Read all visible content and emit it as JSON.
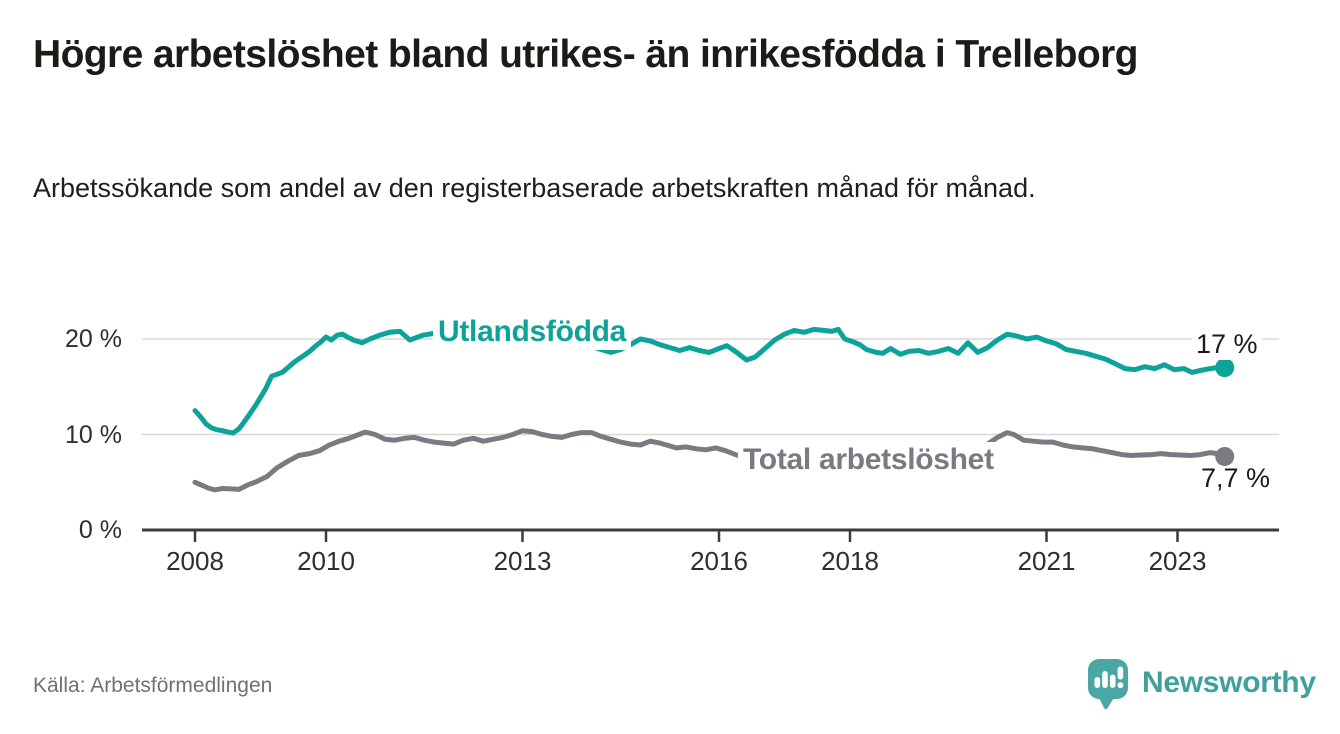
{
  "chart_data": {
    "type": "line",
    "title": "Högre arbetslöshet bland utrikes- än inrikesfödda i Trelleborg",
    "subtitle": "Arbetssökande som andel av den registerbaserade arbetskraften månad för månad.",
    "grid": "horizontal",
    "legend_position": "inline-labels",
    "x_range": [
      2007.95,
      2023.8
    ],
    "ylim": [
      0,
      22
    ],
    "x_ticks": [
      {
        "value": 2008,
        "label": "2008"
      },
      {
        "value": 2010,
        "label": "2010"
      },
      {
        "value": 2013,
        "label": "2013"
      },
      {
        "value": 2016,
        "label": "2016"
      },
      {
        "value": 2018,
        "label": "2018"
      },
      {
        "value": 2021,
        "label": "2021"
      },
      {
        "value": 2023,
        "label": "2023"
      }
    ],
    "y_ticks": [
      {
        "value": 0,
        "label": "0 %"
      },
      {
        "value": 10,
        "label": "10 %"
      },
      {
        "value": 20,
        "label": "20 %"
      }
    ],
    "series": [
      {
        "name": "Utlandsfödda",
        "color": "#0da39b",
        "end_label": "17 %",
        "end_value": 17.0,
        "points": [
          [
            2008.0,
            12.5
          ],
          [
            2008.08,
            11.9
          ],
          [
            2008.17,
            11.1
          ],
          [
            2008.25,
            10.7
          ],
          [
            2008.33,
            10.5
          ],
          [
            2008.42,
            10.4
          ],
          [
            2008.5,
            10.25
          ],
          [
            2008.58,
            10.15
          ],
          [
            2008.67,
            10.6
          ],
          [
            2008.75,
            11.3
          ],
          [
            2008.83,
            12.1
          ],
          [
            2008.92,
            13.0
          ],
          [
            2009.0,
            13.9
          ],
          [
            2009.08,
            14.8
          ],
          [
            2009.17,
            16.1
          ],
          [
            2009.25,
            16.3
          ],
          [
            2009.33,
            16.5
          ],
          [
            2009.42,
            17.0
          ],
          [
            2009.5,
            17.5
          ],
          [
            2009.58,
            17.9
          ],
          [
            2009.67,
            18.3
          ],
          [
            2009.75,
            18.7
          ],
          [
            2009.83,
            19.2
          ],
          [
            2009.92,
            19.7
          ],
          [
            2010.0,
            20.2
          ],
          [
            2010.08,
            19.9
          ],
          [
            2010.17,
            20.4
          ],
          [
            2010.25,
            20.5
          ],
          [
            2010.33,
            20.2
          ],
          [
            2010.42,
            19.9
          ],
          [
            2010.55,
            19.6
          ],
          [
            2010.67,
            20.0
          ],
          [
            2010.82,
            20.4
          ],
          [
            2010.97,
            20.7
          ],
          [
            2011.13,
            20.8
          ],
          [
            2011.28,
            19.9
          ],
          [
            2011.48,
            20.4
          ],
          [
            2011.65,
            20.6
          ],
          [
            2011.8,
            20.4
          ],
          [
            2011.95,
            20.1
          ],
          [
            2012.15,
            20.3
          ],
          [
            2012.35,
            19.7
          ],
          [
            2012.5,
            19.9
          ],
          [
            2012.65,
            20.1
          ],
          [
            2012.8,
            20.0
          ],
          [
            2012.95,
            19.8
          ],
          [
            2013.1,
            19.5
          ],
          [
            2013.25,
            19.4
          ],
          [
            2013.45,
            19.8
          ],
          [
            2013.6,
            19.9
          ],
          [
            2013.8,
            19.6
          ],
          [
            2014.0,
            19.3
          ],
          [
            2014.15,
            19.0
          ],
          [
            2014.35,
            18.6
          ],
          [
            2014.5,
            18.9
          ],
          [
            2014.65,
            19.4
          ],
          [
            2014.8,
            20.0
          ],
          [
            2014.95,
            19.8
          ],
          [
            2015.1,
            19.4
          ],
          [
            2015.25,
            19.1
          ],
          [
            2015.4,
            18.8
          ],
          [
            2015.55,
            19.1
          ],
          [
            2015.7,
            18.8
          ],
          [
            2015.85,
            18.6
          ],
          [
            2016.0,
            19.0
          ],
          [
            2016.12,
            19.3
          ],
          [
            2016.25,
            18.7
          ],
          [
            2016.42,
            17.8
          ],
          [
            2016.55,
            18.1
          ],
          [
            2016.7,
            19.0
          ],
          [
            2016.85,
            19.9
          ],
          [
            2017.0,
            20.5
          ],
          [
            2017.15,
            20.9
          ],
          [
            2017.3,
            20.7
          ],
          [
            2017.45,
            21.0
          ],
          [
            2017.6,
            20.9
          ],
          [
            2017.72,
            20.8
          ],
          [
            2017.82,
            21.0
          ],
          [
            2017.92,
            20.0
          ],
          [
            2018.05,
            19.7
          ],
          [
            2018.15,
            19.4
          ],
          [
            2018.25,
            18.9
          ],
          [
            2018.4,
            18.6
          ],
          [
            2018.5,
            18.5
          ],
          [
            2018.62,
            19.0
          ],
          [
            2018.77,
            18.4
          ],
          [
            2018.9,
            18.7
          ],
          [
            2019.05,
            18.8
          ],
          [
            2019.2,
            18.5
          ],
          [
            2019.35,
            18.7
          ],
          [
            2019.5,
            19.0
          ],
          [
            2019.65,
            18.5
          ],
          [
            2019.8,
            19.6
          ],
          [
            2019.95,
            18.6
          ],
          [
            2020.1,
            19.1
          ],
          [
            2020.25,
            19.9
          ],
          [
            2020.4,
            20.5
          ],
          [
            2020.55,
            20.3
          ],
          [
            2020.7,
            20.0
          ],
          [
            2020.85,
            20.2
          ],
          [
            2021.0,
            19.8
          ],
          [
            2021.15,
            19.5
          ],
          [
            2021.3,
            18.9
          ],
          [
            2021.45,
            18.7
          ],
          [
            2021.6,
            18.5
          ],
          [
            2021.75,
            18.2
          ],
          [
            2021.9,
            17.9
          ],
          [
            2022.05,
            17.4
          ],
          [
            2022.2,
            16.9
          ],
          [
            2022.35,
            16.8
          ],
          [
            2022.5,
            17.1
          ],
          [
            2022.65,
            16.9
          ],
          [
            2022.8,
            17.3
          ],
          [
            2022.95,
            16.8
          ],
          [
            2023.1,
            16.9
          ],
          [
            2023.22,
            16.5
          ],
          [
            2023.35,
            16.7
          ],
          [
            2023.5,
            16.9
          ],
          [
            2023.6,
            17.0
          ],
          [
            2023.72,
            17.0
          ]
        ]
      },
      {
        "name": "Total arbetslöshet",
        "color": "#7a7a82",
        "end_label": "7,7 %",
        "end_value": 7.7,
        "points": [
          [
            2008.0,
            5.0
          ],
          [
            2008.1,
            4.7
          ],
          [
            2008.2,
            4.4
          ],
          [
            2008.3,
            4.2
          ],
          [
            2008.42,
            4.35
          ],
          [
            2008.55,
            4.3
          ],
          [
            2008.67,
            4.25
          ],
          [
            2008.8,
            4.7
          ],
          [
            2008.95,
            5.1
          ],
          [
            2009.1,
            5.6
          ],
          [
            2009.25,
            6.5
          ],
          [
            2009.42,
            7.2
          ],
          [
            2009.58,
            7.8
          ],
          [
            2009.75,
            8.0
          ],
          [
            2009.9,
            8.3
          ],
          [
            2010.05,
            8.9
          ],
          [
            2010.2,
            9.3
          ],
          [
            2010.35,
            9.6
          ],
          [
            2010.5,
            10.0
          ],
          [
            2010.6,
            10.25
          ],
          [
            2010.75,
            10.0
          ],
          [
            2010.9,
            9.5
          ],
          [
            2011.05,
            9.4
          ],
          [
            2011.2,
            9.6
          ],
          [
            2011.35,
            9.7
          ],
          [
            2011.5,
            9.4
          ],
          [
            2011.65,
            9.2
          ],
          [
            2011.8,
            9.1
          ],
          [
            2011.95,
            9.0
          ],
          [
            2012.1,
            9.4
          ],
          [
            2012.25,
            9.6
          ],
          [
            2012.4,
            9.3
          ],
          [
            2012.55,
            9.5
          ],
          [
            2012.7,
            9.7
          ],
          [
            2012.85,
            10.0
          ],
          [
            2013.0,
            10.4
          ],
          [
            2013.15,
            10.3
          ],
          [
            2013.3,
            10.0
          ],
          [
            2013.45,
            9.8
          ],
          [
            2013.6,
            9.7
          ],
          [
            2013.75,
            10.0
          ],
          [
            2013.9,
            10.2
          ],
          [
            2014.05,
            10.2
          ],
          [
            2014.2,
            9.8
          ],
          [
            2014.35,
            9.5
          ],
          [
            2014.5,
            9.2
          ],
          [
            2014.65,
            9.0
          ],
          [
            2014.8,
            8.9
          ],
          [
            2014.95,
            9.3
          ],
          [
            2015.1,
            9.1
          ],
          [
            2015.2,
            8.9
          ],
          [
            2015.35,
            8.6
          ],
          [
            2015.5,
            8.7
          ],
          [
            2015.65,
            8.5
          ],
          [
            2015.8,
            8.4
          ],
          [
            2015.95,
            8.6
          ],
          [
            2016.1,
            8.3
          ],
          [
            2016.25,
            7.9
          ],
          [
            2016.4,
            7.6
          ],
          [
            2016.55,
            7.5
          ],
          [
            2016.7,
            7.7
          ],
          [
            2016.85,
            8.0
          ],
          [
            2017.0,
            8.2
          ],
          [
            2017.2,
            8.5
          ],
          [
            2017.4,
            8.4
          ],
          [
            2017.6,
            8.5
          ],
          [
            2017.8,
            8.6
          ],
          [
            2018.0,
            8.5
          ],
          [
            2018.2,
            8.3
          ],
          [
            2018.4,
            8.2
          ],
          [
            2018.6,
            8.3
          ],
          [
            2018.8,
            8.1
          ],
          [
            2019.0,
            8.0
          ],
          [
            2019.2,
            8.0
          ],
          [
            2019.4,
            7.9
          ],
          [
            2019.6,
            8.0
          ],
          [
            2019.8,
            8.1
          ],
          [
            2019.95,
            8.4
          ],
          [
            2020.1,
            9.0
          ],
          [
            2020.25,
            9.7
          ],
          [
            2020.4,
            10.2
          ],
          [
            2020.5,
            10.0
          ],
          [
            2020.65,
            9.4
          ],
          [
            2020.8,
            9.3
          ],
          [
            2020.95,
            9.2
          ],
          [
            2021.1,
            9.2
          ],
          [
            2021.25,
            8.9
          ],
          [
            2021.4,
            8.7
          ],
          [
            2021.55,
            8.6
          ],
          [
            2021.7,
            8.5
          ],
          [
            2021.85,
            8.3
          ],
          [
            2022.0,
            8.1
          ],
          [
            2022.15,
            7.9
          ],
          [
            2022.3,
            7.8
          ],
          [
            2022.45,
            7.85
          ],
          [
            2022.6,
            7.9
          ],
          [
            2022.75,
            8.0
          ],
          [
            2022.9,
            7.9
          ],
          [
            2023.05,
            7.85
          ],
          [
            2023.2,
            7.8
          ],
          [
            2023.35,
            7.9
          ],
          [
            2023.5,
            8.1
          ],
          [
            2023.6,
            8.0
          ],
          [
            2023.72,
            7.7
          ]
        ]
      }
    ],
    "colors": {
      "grid": "#d8d8d8",
      "axis": "#3b3b3b",
      "accent_teal": "#0da39b",
      "gray": "#7a7a82"
    }
  },
  "footer": {
    "source": "Källa: Arbetsförmedlingen",
    "brand": "Newsworthy"
  }
}
